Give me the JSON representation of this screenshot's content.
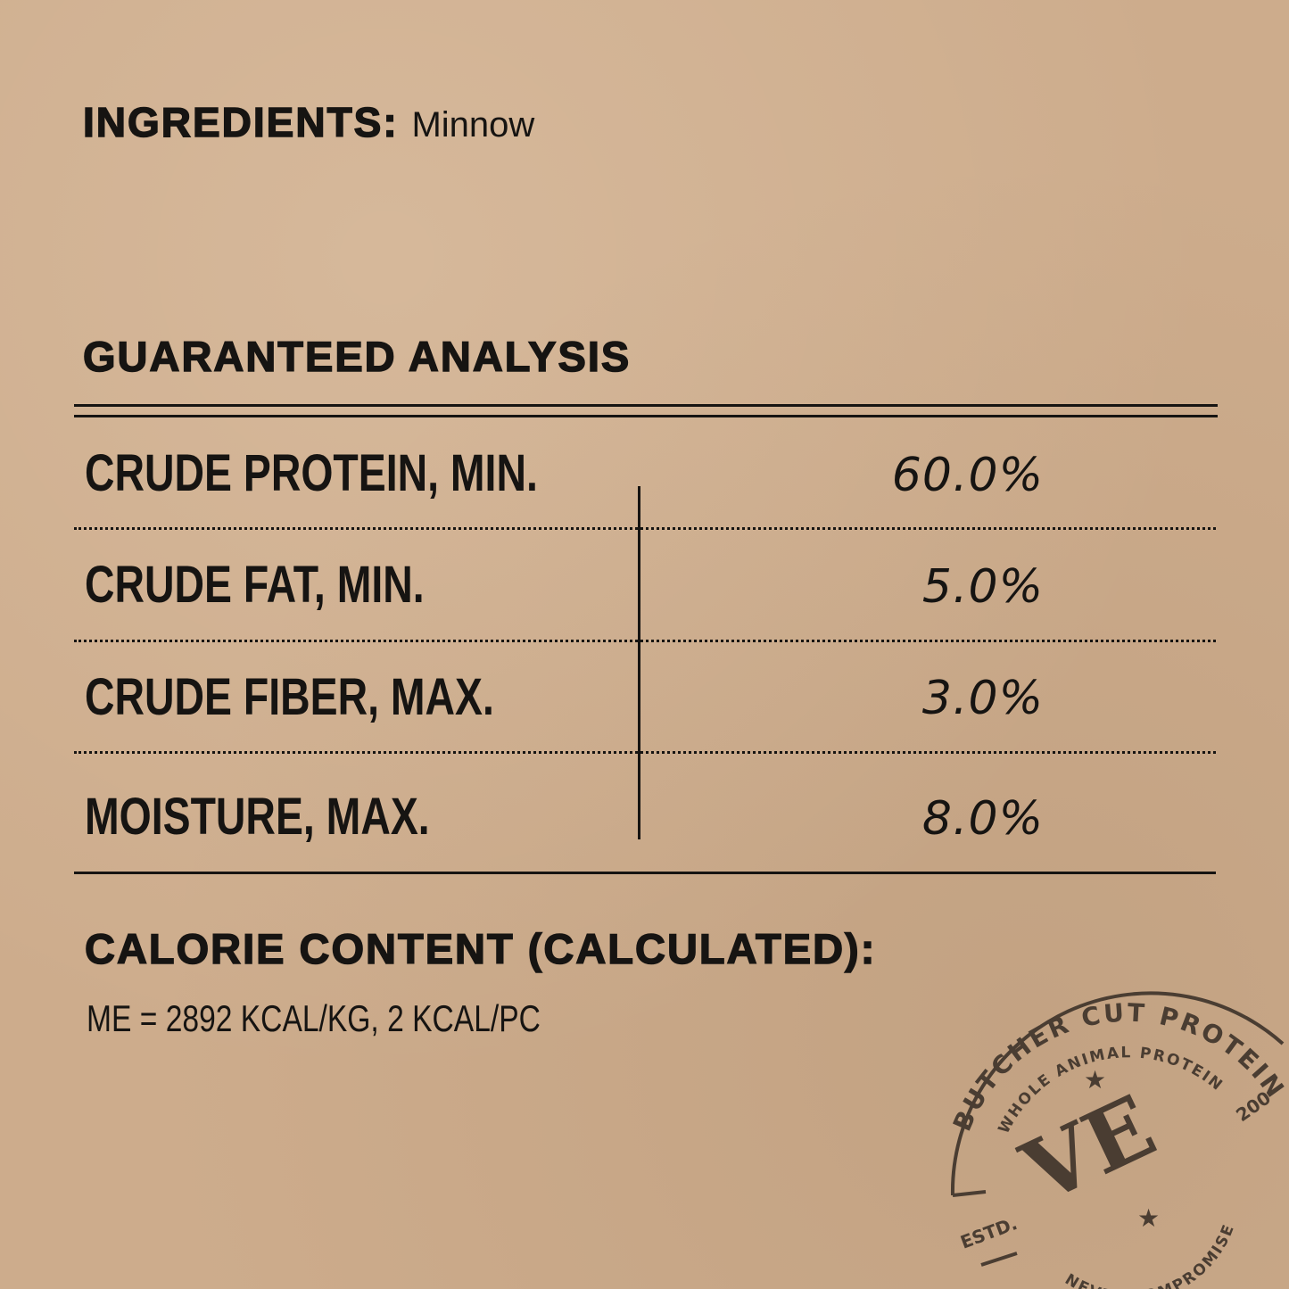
{
  "ingredients": {
    "label": "INGREDIENTS:",
    "value": "Minnow"
  },
  "analysis": {
    "title": "GUARANTEED ANALYSIS",
    "rows": [
      {
        "label": "CRUDE PROTEIN, MIN.",
        "value": "60.0%"
      },
      {
        "label": "CRUDE FAT, MIN.",
        "value": "5.0%"
      },
      {
        "label": "CRUDE FIBER, MAX.",
        "value": "3.0%"
      },
      {
        "label": "MOISTURE, MAX.",
        "value": "8.0%"
      }
    ]
  },
  "calorie": {
    "title": "CALORIE CONTENT (CALCULATED):",
    "value": "ME = 2892 KCAL/KG, 2 KCAL/PC"
  },
  "stamp": {
    "outer": "BUTCHER CUT PROTEIN",
    "inner": "WHOLE ANIMAL PROTEIN",
    "logo": "VE",
    "estd": "ESTD.",
    "year": "200",
    "bottom": "NEVER COMPROMISE"
  },
  "colors": {
    "background": "#cdac8c",
    "ink": "#161412",
    "stamp": "#4a3d32"
  }
}
